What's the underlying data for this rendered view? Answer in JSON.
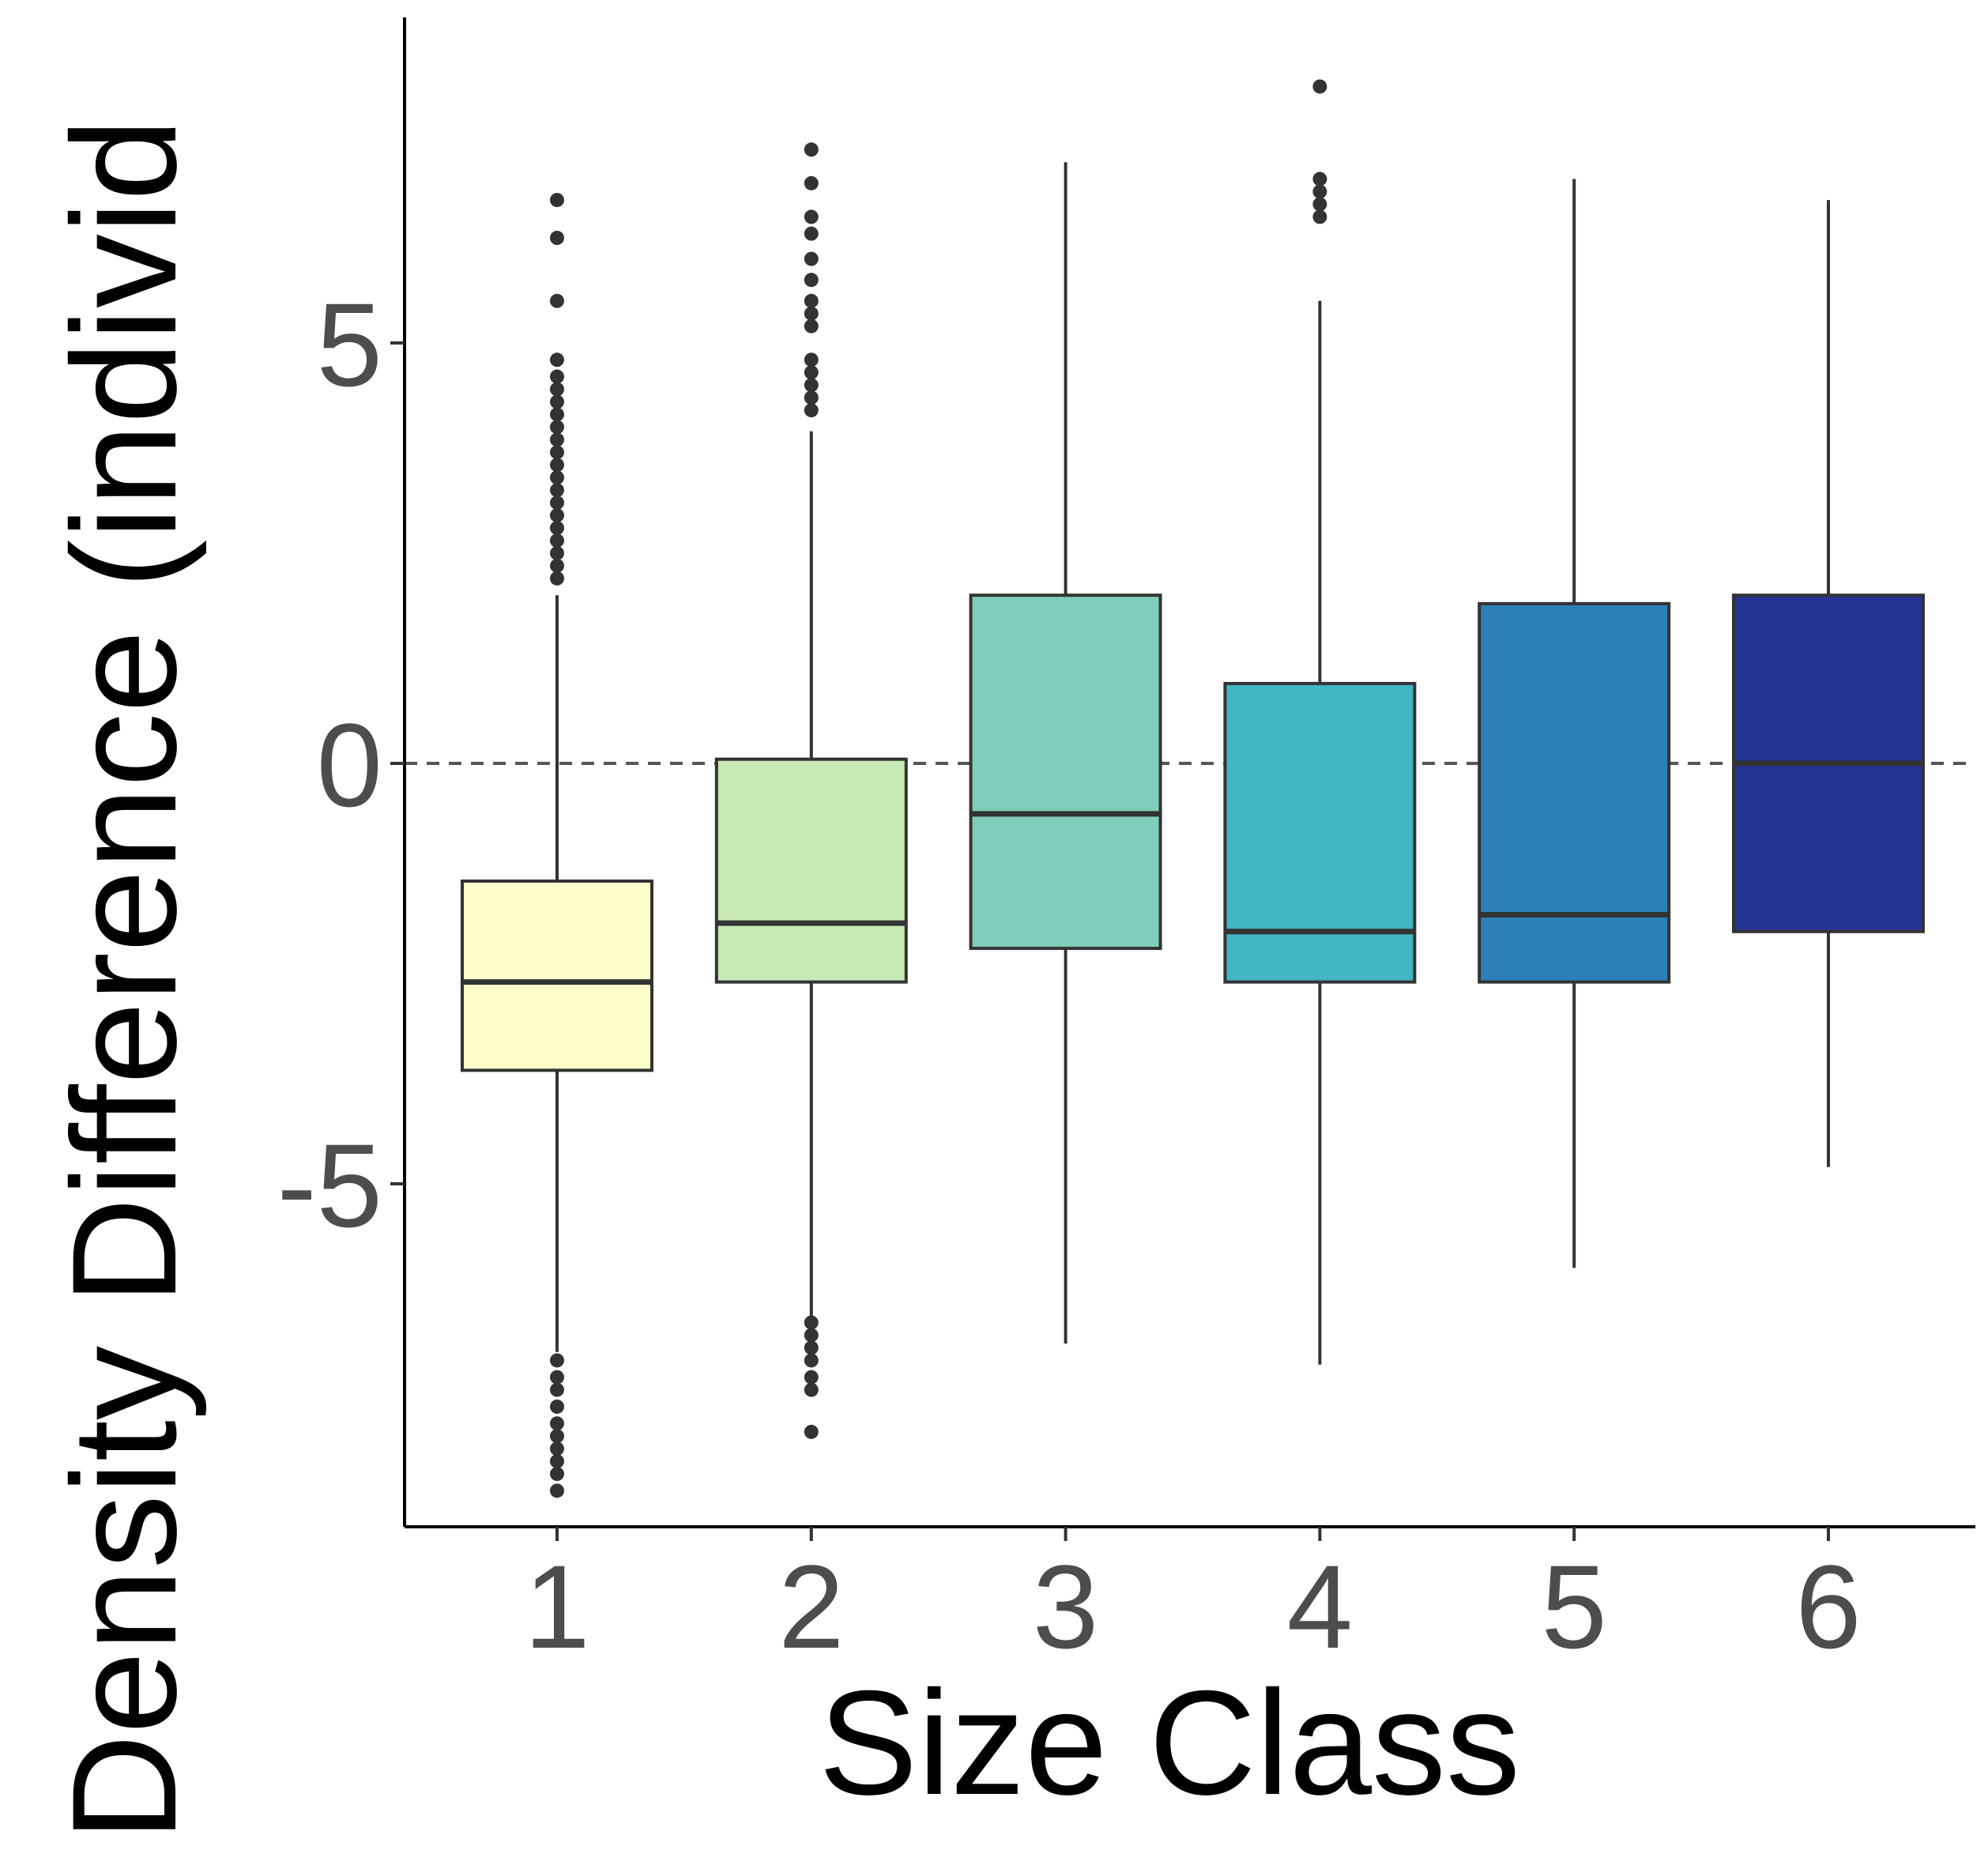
{
  "chart_data": {
    "type": "box",
    "xlabel": "Size Class",
    "ylabel": "Density Difference (individ",
    "categories": [
      "1",
      "2",
      "3",
      "4",
      "5",
      "6"
    ],
    "yticks": [
      -5,
      0,
      5
    ],
    "ylim": [
      -9.0,
      9.0
    ],
    "reference_line": {
      "y": 0,
      "style": "dashed"
    },
    "grid": false,
    "legend": "none",
    "series": [
      {
        "category": "1",
        "color": "#ffffcc",
        "whisker_low": -7.0,
        "q1": -3.65,
        "median": -2.6,
        "q3": -1.4,
        "whisker_high": 2.0,
        "outliers": [
          6.7,
          6.25,
          5.5,
          4.8,
          4.6,
          4.45,
          4.3,
          4.15,
          4.0,
          3.85,
          3.7,
          3.55,
          3.4,
          3.25,
          3.1,
          2.95,
          2.8,
          2.65,
          2.5,
          2.35,
          2.2,
          -7.1,
          -7.3,
          -7.45,
          -7.65,
          -7.85,
          -8.0,
          -8.15,
          -8.3,
          -8.45,
          -8.65
        ]
      },
      {
        "category": "2",
        "color": "#c7e9b4",
        "whisker_low": -6.6,
        "q1": -2.6,
        "median": -1.9,
        "q3": 0.05,
        "whisker_high": 3.95,
        "outliers": [
          7.3,
          6.9,
          6.5,
          6.3,
          6.0,
          5.75,
          5.5,
          5.35,
          5.2,
          4.8,
          4.65,
          4.5,
          4.35,
          4.2,
          -6.65,
          -6.8,
          -6.95,
          -7.1,
          -7.3,
          -7.45,
          -7.95
        ]
      },
      {
        "category": "3",
        "color": "#7fcdbb",
        "whisker_low": -6.9,
        "q1": -2.2,
        "median": -0.6,
        "q3": 2.0,
        "whisker_high": 7.15,
        "outliers": []
      },
      {
        "category": "4",
        "color": "#41b6c4",
        "whisker_low": -7.15,
        "q1": -2.6,
        "median": -2.0,
        "q3": 0.95,
        "whisker_high": 5.5,
        "outliers": [
          8.05,
          6.95,
          6.8,
          6.65,
          6.5
        ]
      },
      {
        "category": "5",
        "color": "#2c7fb8",
        "whisker_low": -6.0,
        "q1": -2.6,
        "median": -1.8,
        "q3": 1.9,
        "whisker_high": 6.95,
        "outliers": []
      },
      {
        "category": "6",
        "color": "#253494",
        "whisker_low": -4.8,
        "q1": -2.0,
        "median": 0.0,
        "q3": 2.0,
        "whisker_high": 6.7,
        "outliers": []
      }
    ]
  }
}
